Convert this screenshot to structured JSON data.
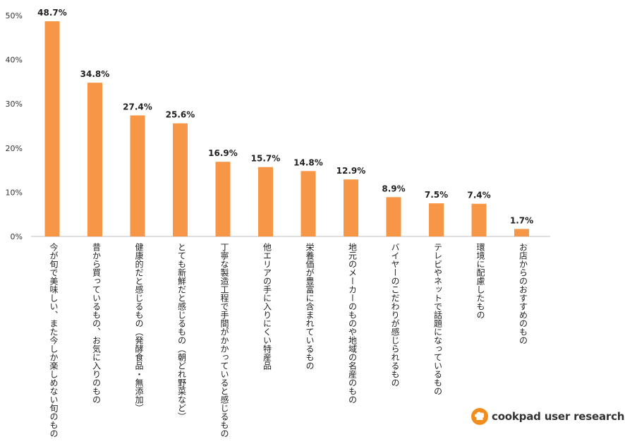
{
  "chart_data": {
    "type": "bar",
    "title": "",
    "xlabel": "",
    "ylabel": "",
    "ylim": [
      0,
      50
    ],
    "yticks": [
      "0%",
      "10%",
      "20%",
      "30%",
      "40%",
      "50%"
    ],
    "ytick_values": [
      0,
      10,
      20,
      30,
      40,
      50
    ],
    "bar_color": "#f79646",
    "grid": false,
    "categories": [
      "今が旬で美味しい、また今しか楽しめない旬のもの",
      "昔から買っているもの、お気に入りのもの",
      "健康的だと感じるもの（発酵食品・無添加）",
      "とても新鮮だと感じるもの（朝どれ野菜など）",
      "丁寧な製造工程で手間がかかっていると感じるもの",
      "他エリアの手に入りにくい特産品",
      "栄養価が豊富に含まれているもの",
      "地元のメーカーのものや地域の名産のもの",
      "バイヤーのこだわりが感じられるもの",
      "テレビやネットで話題になっているもの",
      "環境に配慮したもの",
      "お店からのおすすめのもの"
    ],
    "values": [
      48.7,
      34.8,
      27.4,
      25.6,
      16.9,
      15.7,
      14.8,
      12.9,
      8.9,
      7.5,
      7.4,
      1.7
    ],
    "labels": [
      "48.7%",
      "34.8%",
      "27.4%",
      "25.6%",
      "16.9%",
      "15.7%",
      "14.8%",
      "12.9%",
      "8.9%",
      "7.5%",
      "7.4%",
      "1.7%"
    ]
  },
  "logo": {
    "text": "cookpad user research",
    "color": "#f28c1e"
  }
}
